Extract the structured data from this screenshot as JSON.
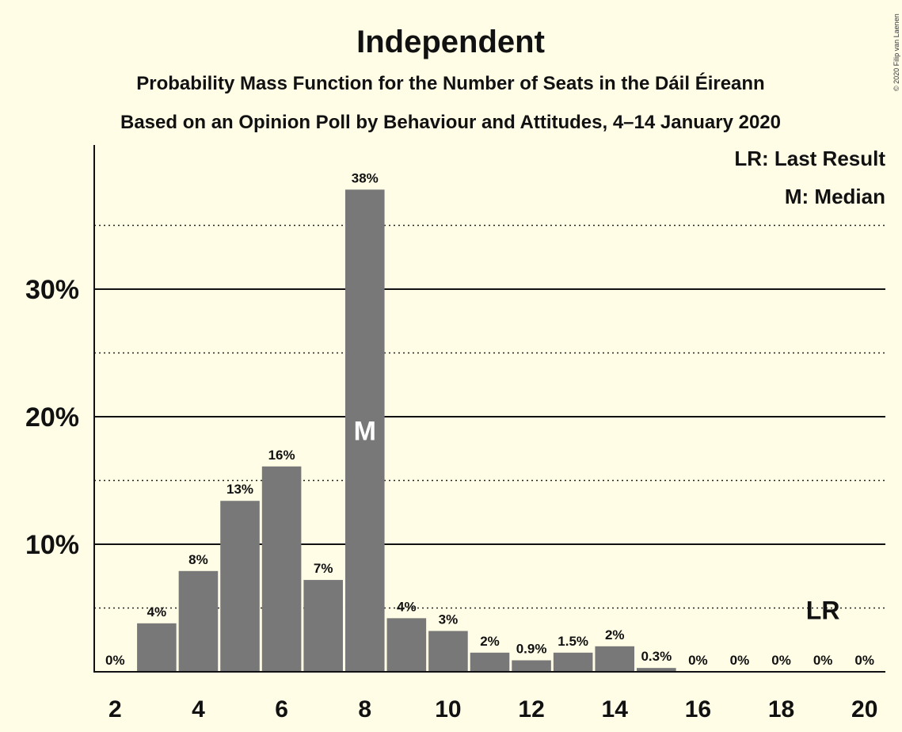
{
  "chart_data": {
    "type": "bar",
    "title": "Independent",
    "subtitle_lines": [
      "Probability Mass Function for the Number of Seats in the Dáil Éireann",
      "Based on an Opinion Poll by Behaviour and Attitudes, 4–14 January 2020"
    ],
    "copyright": "© 2020 Filip van Laenen",
    "categories": [
      2,
      3,
      4,
      5,
      6,
      7,
      8,
      9,
      10,
      11,
      12,
      13,
      14,
      15,
      16,
      17,
      18,
      19,
      20
    ],
    "values": [
      0,
      3.8,
      7.9,
      13.4,
      16.1,
      7.2,
      37.8,
      4.2,
      3.2,
      1.5,
      0.9,
      1.5,
      2.0,
      0.3,
      0,
      0,
      0,
      0,
      0
    ],
    "value_labels": [
      "0%",
      "4%",
      "8%",
      "13%",
      "16%",
      "7%",
      "38%",
      "4%",
      "3%",
      "2%",
      "0.9%",
      "1.5%",
      "2%",
      "0.3%",
      "0%",
      "0%",
      "0%",
      "0%",
      "0%"
    ],
    "x_tick_labels": [
      "2",
      "4",
      "6",
      "8",
      "10",
      "12",
      "14",
      "16",
      "18",
      "20"
    ],
    "y_ticks": [
      {
        "value": 10,
        "label": "10%"
      },
      {
        "value": 20,
        "label": "20%"
      },
      {
        "value": 30,
        "label": "30%"
      }
    ],
    "y_dotted_gridlines": [
      5,
      15,
      25,
      35
    ],
    "ylim": [
      0,
      41.3
    ],
    "xlim": [
      1.5,
      20.5
    ],
    "median_seat": 8,
    "median_marker": "M",
    "last_result_seat": 19,
    "last_result_marker": "LR",
    "legend": [
      "LR: Last Result",
      "M: Median"
    ],
    "legend_position": "top-right",
    "colors": {
      "background": "#fffde6",
      "bar": "#787878",
      "text": "#111111"
    }
  }
}
